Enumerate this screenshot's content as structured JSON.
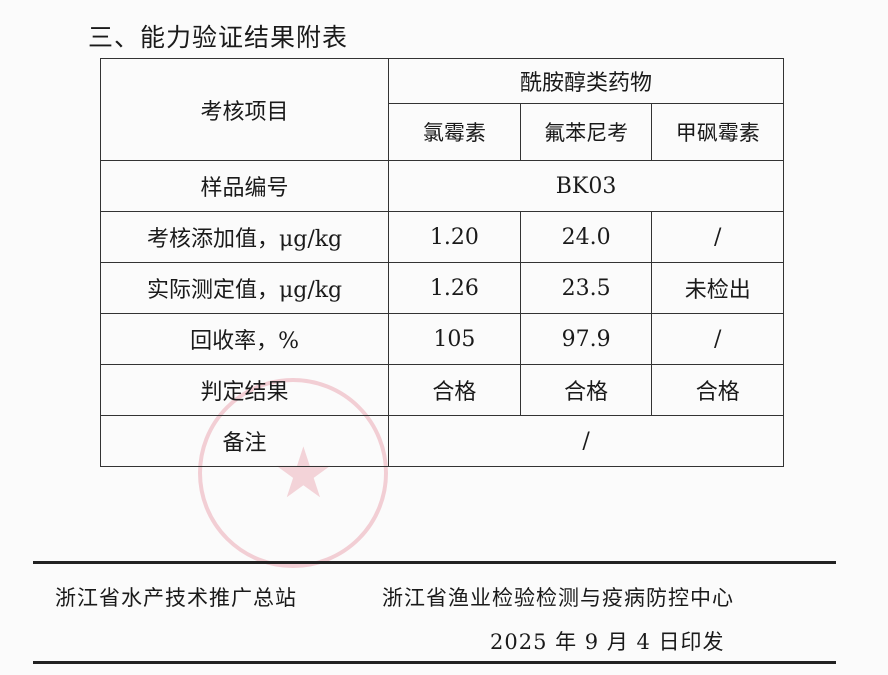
{
  "title": "三、能力验证结果附表",
  "table": {
    "item_header": "考核项目",
    "group_header": "酰胺醇类药物",
    "drugs": [
      "氯霉素",
      "氟苯尼考",
      "甲砜霉素"
    ],
    "sample_label": "样品编号",
    "sample_value": "BK03",
    "rows": [
      {
        "label": "考核添加值，μg/kg",
        "values": [
          "1.20",
          "24.0",
          "/"
        ]
      },
      {
        "label": "实际测定值，μg/kg",
        "values": [
          "1.26",
          "23.5",
          "未检出"
        ]
      },
      {
        "label": "回收率，%",
        "values": [
          "105",
          "97.9",
          "/"
        ]
      },
      {
        "label": "判定结果",
        "values": [
          "合格",
          "合格",
          "合格"
        ]
      }
    ],
    "remark_label": "备注",
    "remark_value": "/"
  },
  "footer": {
    "issuer_1": "浙江省水产技术推广总站",
    "issuer_2": "浙江省渔业检验检测与疫病防控中心",
    "date": "2025 年 9 月 4 日印发"
  },
  "seal_color": "#dc5a6e"
}
